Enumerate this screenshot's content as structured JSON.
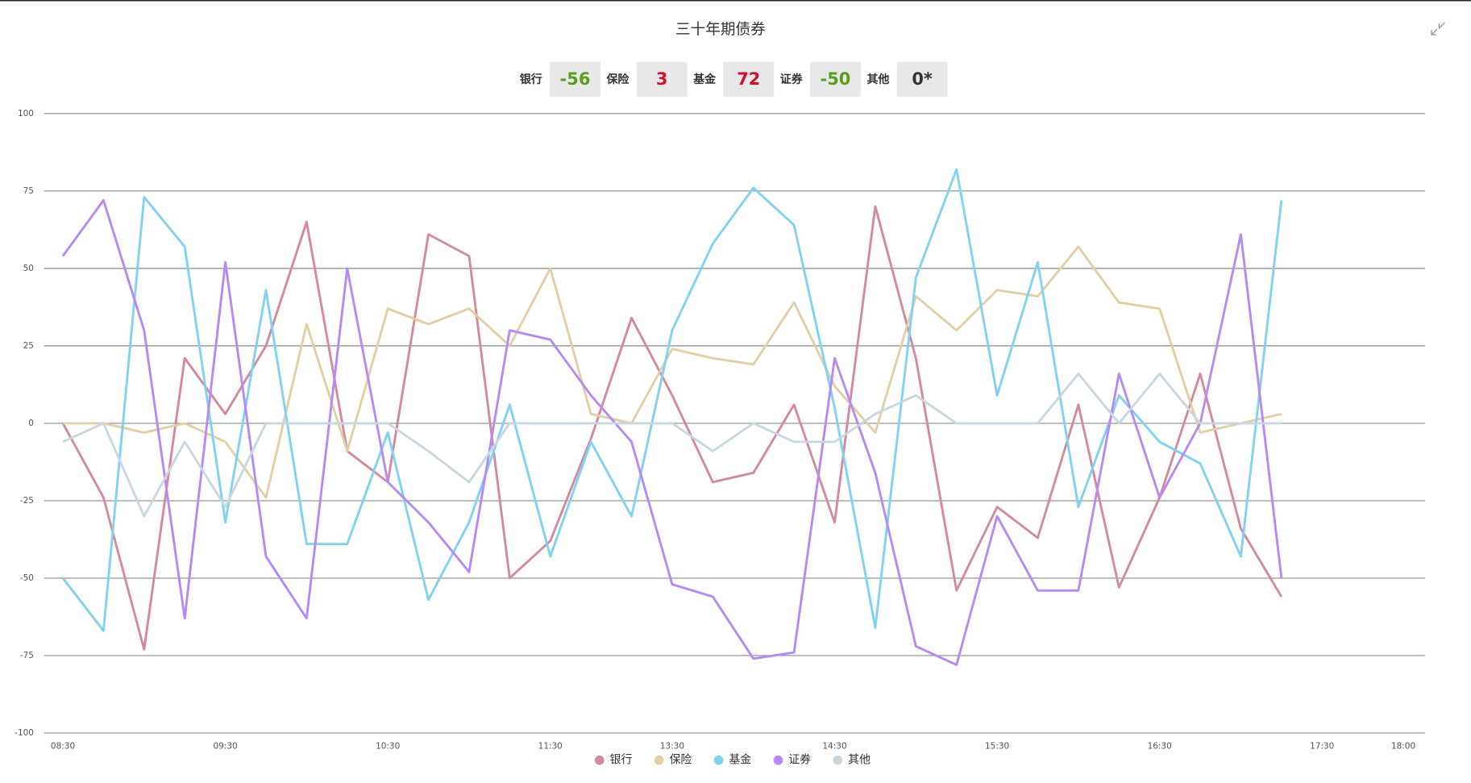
{
  "chart_data": {
    "type": "line",
    "title": "三十年期债券",
    "summary": [
      {
        "name": "银行",
        "value": -56
      },
      {
        "name": "保险",
        "value": 3
      },
      {
        "name": "基金",
        "value": 72
      },
      {
        "name": "证券",
        "value": -50
      },
      {
        "name": "其他",
        "value": 0,
        "value_label": "0*"
      }
    ],
    "categories": [
      "08:30",
      null,
      null,
      null,
      "09:30",
      null,
      null,
      null,
      "10:30",
      null,
      null,
      null,
      "11:30",
      null,
      null,
      "13:30",
      null,
      null,
      null,
      "14:30",
      null,
      null,
      null,
      "15:30",
      null,
      null,
      null,
      "16:30",
      null,
      null,
      null,
      "17:30",
      null,
      "18:00"
    ],
    "ylim": [
      -100,
      100
    ],
    "yticks": [
      -100,
      -75,
      -50,
      -25,
      0,
      25,
      50,
      75,
      100
    ],
    "grid": true,
    "series": [
      {
        "name": "银行",
        "color": "#d4899f",
        "values": [
          0,
          -24,
          -73,
          21,
          3,
          25,
          65,
          -9,
          -19,
          61,
          54,
          -50,
          -38,
          -5,
          34,
          9,
          -19,
          -16,
          6,
          -32,
          70,
          21,
          -54,
          -27,
          -37,
          6,
          -53,
          -24,
          16,
          -34,
          -56,
          null,
          null,
          null
        ]
      },
      {
        "name": "保险",
        "color": "#e2cfa5",
        "values": [
          0,
          0,
          -3,
          0,
          -6,
          -24,
          32,
          -9,
          37,
          32,
          37,
          25,
          50,
          3,
          0,
          24,
          21,
          19,
          39,
          12,
          -3,
          41,
          30,
          43,
          41,
          57,
          39,
          37,
          -3,
          0,
          3,
          null,
          null,
          null
        ]
      },
      {
        "name": "基金",
        "color": "#80d2f2",
        "values": [
          -50,
          -67,
          73,
          57,
          -32,
          43,
          -39,
          -39,
          -3,
          -57,
          -32,
          6,
          -43,
          -6,
          -30,
          30,
          58,
          76,
          64,
          5,
          -66,
          47,
          82,
          9,
          52,
          -27,
          9,
          -6,
          -13,
          -43,
          72,
          null,
          null,
          null
        ]
      },
      {
        "name": "证券",
        "color": "#b58af6",
        "values": [
          54,
          72,
          30,
          -63,
          52,
          -43,
          -63,
          50,
          -19,
          -32,
          -48,
          30,
          27,
          9,
          -6,
          -52,
          -56,
          -76,
          -74,
          21,
          -16,
          -72,
          -78,
          -30,
          -54,
          -54,
          16,
          -24,
          0,
          61,
          -50,
          null,
          null,
          null
        ]
      },
      {
        "name": "其他",
        "color": "#c9d8e0",
        "values": [
          -6,
          0,
          -30,
          -6,
          -27,
          0,
          0,
          0,
          0,
          -9,
          -19,
          0,
          0,
          0,
          0,
          0,
          -9,
          0,
          -6,
          -6,
          3,
          9,
          0,
          0,
          0,
          16,
          0,
          16,
          0,
          0,
          0,
          null,
          null,
          null
        ]
      }
    ]
  }
}
